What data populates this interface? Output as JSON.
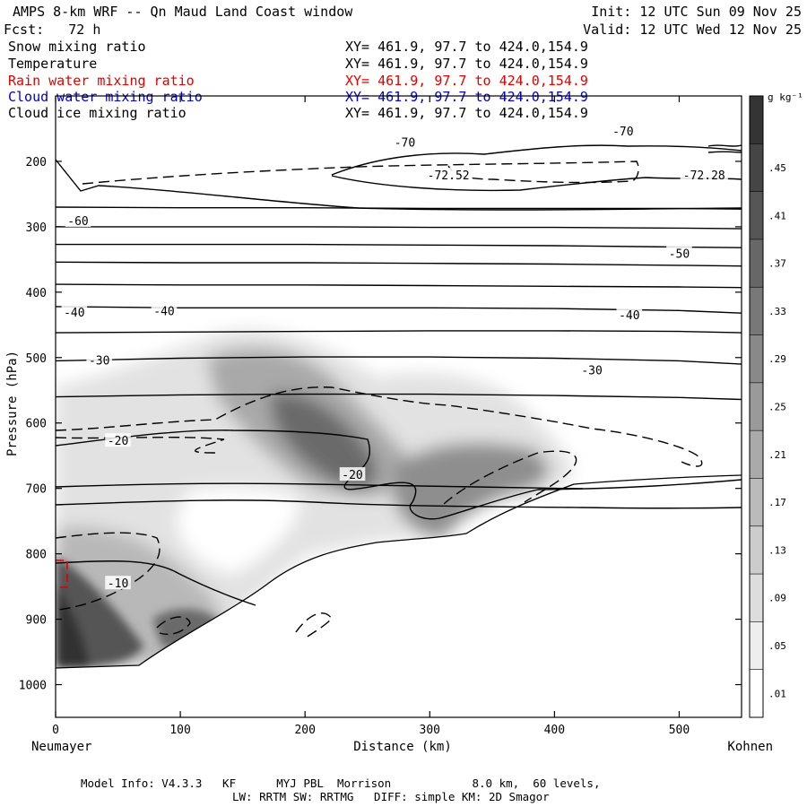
{
  "header": {
    "title": "AMPS 8-km WRF -- Qn Maud Land Coast window",
    "init": "Init: 12 UTC Sun 09 Nov 25",
    "fcst": "Fcst:   72 h",
    "valid": "Valid: 12 UTC Wed 12 Nov 25"
  },
  "fields": [
    {
      "label": "Snow mixing ratio",
      "xy": "XY= 461.9, 97.7 to 424.0,154.9",
      "color": "#000000"
    },
    {
      "label": "Temperature",
      "xy": "XY= 461.9, 97.7 to 424.0,154.9",
      "color": "#000000"
    },
    {
      "label": "Rain water mixing ratio",
      "xy": "XY= 461.9, 97.7 to 424.0,154.9",
      "color": "#e00000"
    },
    {
      "label": "Cloud water mixing ratio",
      "xy": "XY= 461.9, 97.7 to 424.0,154.9",
      "color": "#0000c8"
    },
    {
      "label": "Cloud ice mixing ratio",
      "xy": "XY= 461.9, 97.7 to 424.0,154.9",
      "color": "#000000"
    }
  ],
  "footer": {
    "line1": "Model Info: V4.3.3   KF      MYJ PBL  Morrison            8.0 km,  60 levels,",
    "line2": "LW: RRTM SW: RRTMG   DIFF: simple KM: 2D Smagor"
  },
  "chart_data": {
    "type": "cross-section",
    "xlabel": "Distance (km)",
    "ylabel": "Pressure (hPa)",
    "x_start_label": "Neumayer",
    "x_end_label": "Kohnen",
    "xlim": [
      0,
      550
    ],
    "ylim": [
      1050,
      100
    ],
    "x_ticks": [
      0,
      100,
      200,
      300,
      400,
      500
    ],
    "y_ticks": [
      200,
      300,
      400,
      500,
      600,
      700,
      800,
      900,
      1000
    ],
    "colorbar": {
      "unit": "g kg⁻¹",
      "levels": [
        ".01",
        ".05",
        ".09",
        ".13",
        ".17",
        ".21",
        ".25",
        ".29",
        ".33",
        ".37",
        ".41",
        ".45"
      ]
    },
    "temperature_labels": [
      {
        "text": "-70",
        "x": 280,
        "p": 172
      },
      {
        "text": "-70",
        "x": 455,
        "p": 155
      },
      {
        "text": "-72.52",
        "x": 315,
        "p": 222
      },
      {
        "text": "-72.28",
        "x": 520,
        "p": 222
      },
      {
        "text": "-60",
        "x": 18,
        "p": 292
      },
      {
        "text": "-50",
        "x": 500,
        "p": 342
      },
      {
        "text": "-40",
        "x": 15,
        "p": 432
      },
      {
        "text": "-40",
        "x": 87,
        "p": 430
      },
      {
        "text": "-40",
        "x": 460,
        "p": 436
      },
      {
        "text": "-30",
        "x": 35,
        "p": 505
      },
      {
        "text": "-30",
        "x": 430,
        "p": 520
      },
      {
        "text": "-20",
        "x": 50,
        "p": 628
      },
      {
        "text": "-20",
        "x": 238,
        "p": 680
      },
      {
        "text": "-10",
        "x": 50,
        "p": 846
      }
    ],
    "temperature_isotherms_hPa": [
      {
        "level": -60,
        "p": [
          300,
          300,
          300,
          301,
          301,
          302,
          303
        ]
      },
      {
        "level": -55,
        "p": [
          270,
          271,
          271,
          272,
          272,
          272,
          273
        ]
      },
      {
        "level": -50,
        "p": [
          327,
          327,
          327,
          328,
          329,
          331,
          332
        ]
      },
      {
        "level": -45,
        "p": [
          354,
          355,
          355,
          356,
          357,
          359,
          360
        ]
      },
      {
        "level": -45,
        "p": [
          388,
          389,
          389,
          390,
          391,
          392,
          393
        ]
      },
      {
        "level": -40,
        "p": [
          422,
          424,
          424,
          424,
          425,
          428,
          432
        ]
      },
      {
        "level": -35,
        "p": [
          462,
          461,
          460,
          459,
          459,
          460,
          462
        ]
      },
      {
        "level": -30,
        "p": [
          505,
          501,
          499,
          499,
          501,
          505,
          510
        ]
      },
      {
        "level": -25,
        "p": [
          560,
          557,
          556,
          556,
          558,
          561,
          564
        ]
      }
    ],
    "x_profile_km": [
      0,
      100,
      200,
      300,
      400,
      500,
      550
    ]
  }
}
